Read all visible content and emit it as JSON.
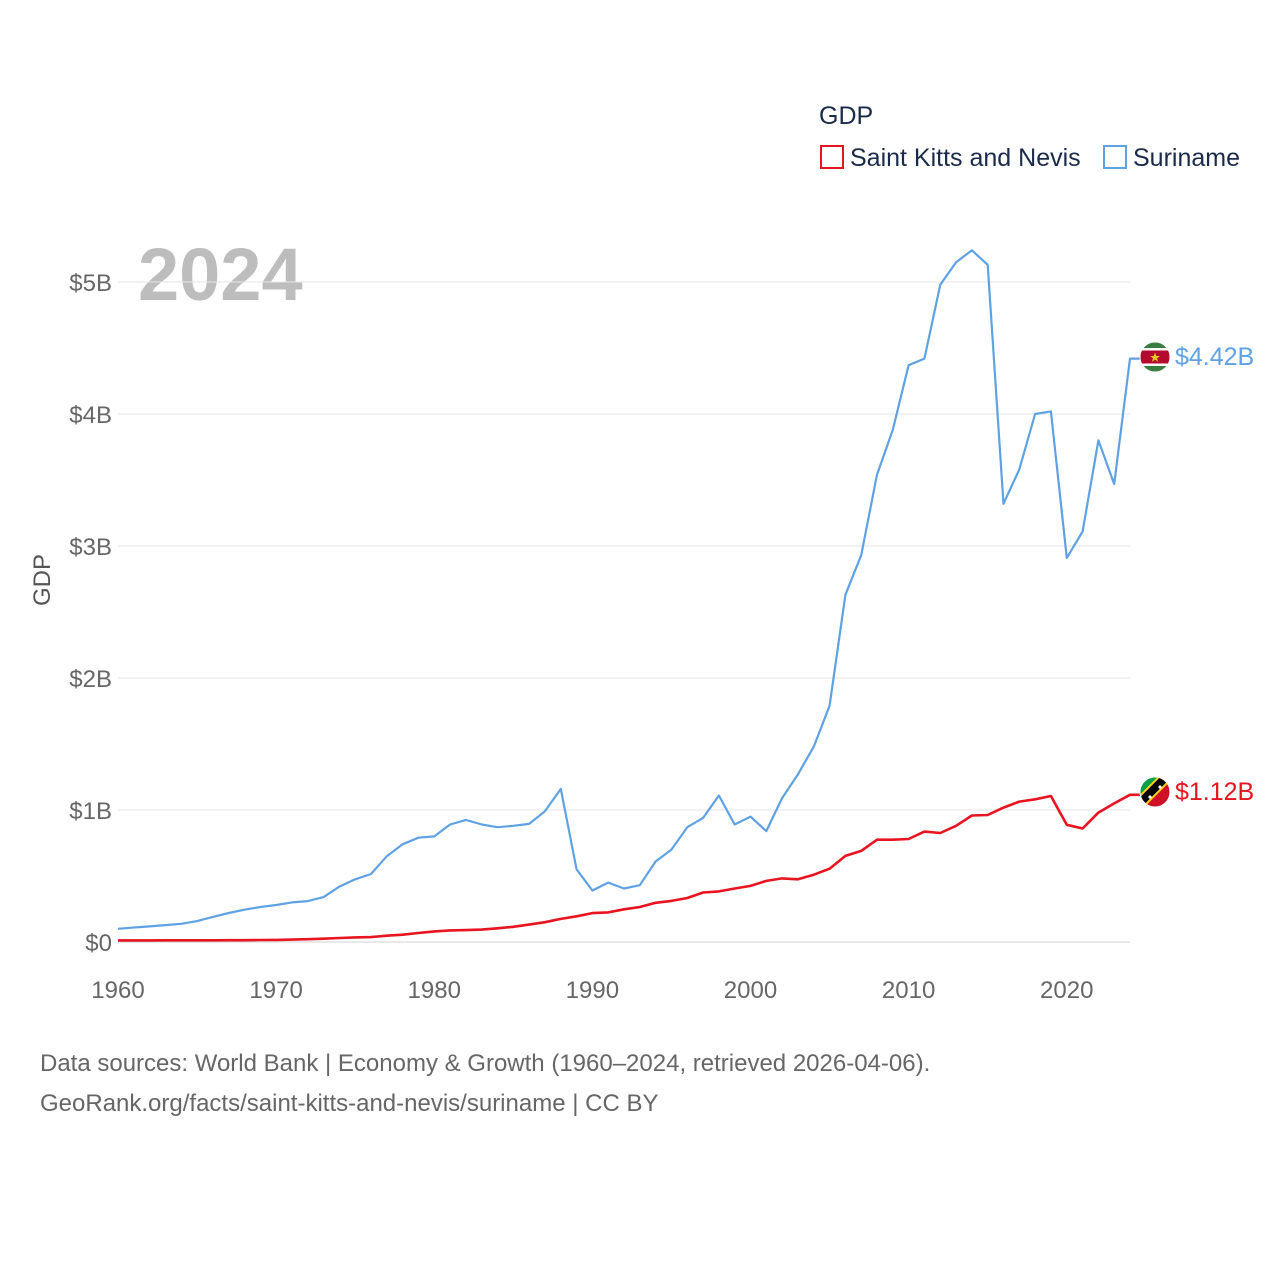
{
  "chart_data": {
    "type": "line",
    "title": "GDP",
    "year_label": "2024",
    "ylabel": "GDP",
    "xlabel": "",
    "xlim": [
      1960,
      2024
    ],
    "ylim": [
      0,
      5.3
    ],
    "x_ticks": [
      {
        "value": 1960,
        "label": "1960"
      },
      {
        "value": 1970,
        "label": "1970"
      },
      {
        "value": 1980,
        "label": "1980"
      },
      {
        "value": 1990,
        "label": "1990"
      },
      {
        "value": 2000,
        "label": "2000"
      },
      {
        "value": 2010,
        "label": "2010"
      },
      {
        "value": 2020,
        "label": "2020"
      }
    ],
    "y_ticks": [
      {
        "value": 0,
        "label": "$0"
      },
      {
        "value": 1,
        "label": "$1B"
      },
      {
        "value": 2,
        "label": "$2B"
      },
      {
        "value": 3,
        "label": "$3B"
      },
      {
        "value": 4,
        "label": "$4B"
      },
      {
        "value": 5,
        "label": "$5B"
      }
    ],
    "grid": true,
    "legend_position": "top-right",
    "units": "billions USD",
    "x": [
      1960,
      1961,
      1962,
      1963,
      1964,
      1965,
      1966,
      1967,
      1968,
      1969,
      1970,
      1971,
      1972,
      1973,
      1974,
      1975,
      1976,
      1977,
      1978,
      1979,
      1980,
      1981,
      1982,
      1983,
      1984,
      1985,
      1986,
      1987,
      1988,
      1989,
      1990,
      1991,
      1992,
      1993,
      1994,
      1995,
      1996,
      1997,
      1998,
      1999,
      2000,
      2001,
      2002,
      2003,
      2004,
      2005,
      2006,
      2007,
      2008,
      2009,
      2010,
      2011,
      2012,
      2013,
      2014,
      2015,
      2016,
      2017,
      2018,
      2019,
      2020,
      2021,
      2022,
      2023,
      2024
    ],
    "series": [
      {
        "name": "Saint Kitts and Nevis",
        "color": "#e8141f",
        "end_label": "$1.12B",
        "flag": "saint-kitts-and-nevis-flag",
        "values": [
          0.012,
          0.012,
          0.012,
          0.013,
          0.013,
          0.013,
          0.013,
          0.014,
          0.014,
          0.015,
          0.016,
          0.018,
          0.021,
          0.025,
          0.03,
          0.035,
          0.037,
          0.048,
          0.055,
          0.068,
          0.08,
          0.088,
          0.09,
          0.094,
          0.104,
          0.115,
          0.132,
          0.15,
          0.175,
          0.195,
          0.219,
          0.224,
          0.248,
          0.265,
          0.297,
          0.311,
          0.333,
          0.375,
          0.383,
          0.405,
          0.425,
          0.463,
          0.482,
          0.475,
          0.51,
          0.555,
          0.652,
          0.69,
          0.775,
          0.775,
          0.78,
          0.836,
          0.826,
          0.88,
          0.958,
          0.962,
          1.018,
          1.064,
          1.081,
          1.106,
          0.888,
          0.86,
          0.98,
          1.05,
          1.115
        ]
      },
      {
        "name": "Suriname",
        "color": "#5fa2e3",
        "end_label": "$4.42B",
        "flag": "suriname-flag",
        "values": [
          0.1,
          0.11,
          0.118,
          0.128,
          0.138,
          0.158,
          0.19,
          0.22,
          0.245,
          0.265,
          0.28,
          0.3,
          0.31,
          0.34,
          0.42,
          0.475,
          0.515,
          0.65,
          0.74,
          0.79,
          0.8,
          0.89,
          0.925,
          0.89,
          0.87,
          0.88,
          0.895,
          0.99,
          1.16,
          0.55,
          0.39,
          0.45,
          0.405,
          0.43,
          0.61,
          0.7,
          0.87,
          0.94,
          1.11,
          0.89,
          0.95,
          0.84,
          1.09,
          1.27,
          1.48,
          1.79,
          2.63,
          2.93,
          3.54,
          3.88,
          4.37,
          4.42,
          4.98,
          5.15,
          5.24,
          5.13,
          3.32,
          3.58,
          4.0,
          4.02,
          2.91,
          3.11,
          3.8,
          3.47,
          4.42
        ]
      }
    ]
  },
  "source": {
    "line1": "Data sources: World Bank | Economy & Growth (1960–2024, retrieved 2026-04-06).",
    "line2": "GeoRank.org/facts/saint-kitts-and-nevis/suriname | CC BY"
  }
}
